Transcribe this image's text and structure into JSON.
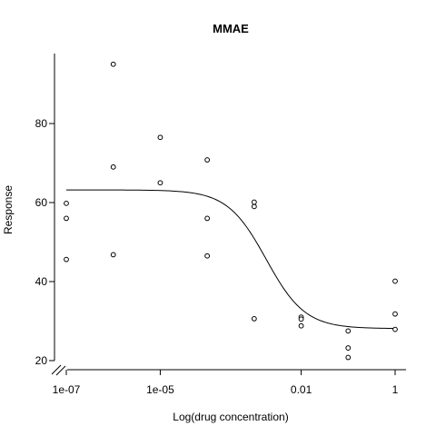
{
  "chart_data": {
    "type": "scatter",
    "title": "MMAE",
    "xlabel": "Log(drug concentration)",
    "ylabel": "Response",
    "x_scale": "log10",
    "xlim": [
      1e-07,
      1
    ],
    "ylim": [
      20,
      95
    ],
    "x_ticks": [
      1e-07,
      1e-05,
      0.01,
      1
    ],
    "x_tick_labels": [
      "1e-07",
      "1e-05",
      "0.01",
      "1"
    ],
    "y_ticks": [
      20,
      40,
      60,
      80
    ],
    "y_tick_labels": [
      "20",
      "40",
      "60",
      "80"
    ],
    "grid": false,
    "axis_break_on_x": true,
    "points": [
      {
        "x": 1e-07,
        "y": 59.8
      },
      {
        "x": 1e-07,
        "y": 56.0
      },
      {
        "x": 1e-07,
        "y": 45.6
      },
      {
        "x": 1e-06,
        "y": 95.0
      },
      {
        "x": 1e-06,
        "y": 69.0
      },
      {
        "x": 1e-06,
        "y": 46.8
      },
      {
        "x": 1e-05,
        "y": 76.5
      },
      {
        "x": 1e-05,
        "y": 65.0
      },
      {
        "x": 0.0001,
        "y": 70.8
      },
      {
        "x": 0.0001,
        "y": 56.0
      },
      {
        "x": 0.0001,
        "y": 46.5
      },
      {
        "x": 0.001,
        "y": 60.1
      },
      {
        "x": 0.001,
        "y": 59.0
      },
      {
        "x": 0.001,
        "y": 30.6
      },
      {
        "x": 0.01,
        "y": 31.0
      },
      {
        "x": 0.01,
        "y": 30.5
      },
      {
        "x": 0.01,
        "y": 28.8
      },
      {
        "x": 0.1,
        "y": 27.5
      },
      {
        "x": 0.1,
        "y": 23.2
      },
      {
        "x": 0.1,
        "y": 20.8
      },
      {
        "x": 1,
        "y": 40.1
      },
      {
        "x": 1,
        "y": 31.8
      },
      {
        "x": 1,
        "y": 27.9
      }
    ],
    "fit_curve": {
      "model": "4-parameter logistic",
      "top": 63.2,
      "bottom": 28.1,
      "ec50": 0.0018,
      "hill": 1.05
    }
  }
}
